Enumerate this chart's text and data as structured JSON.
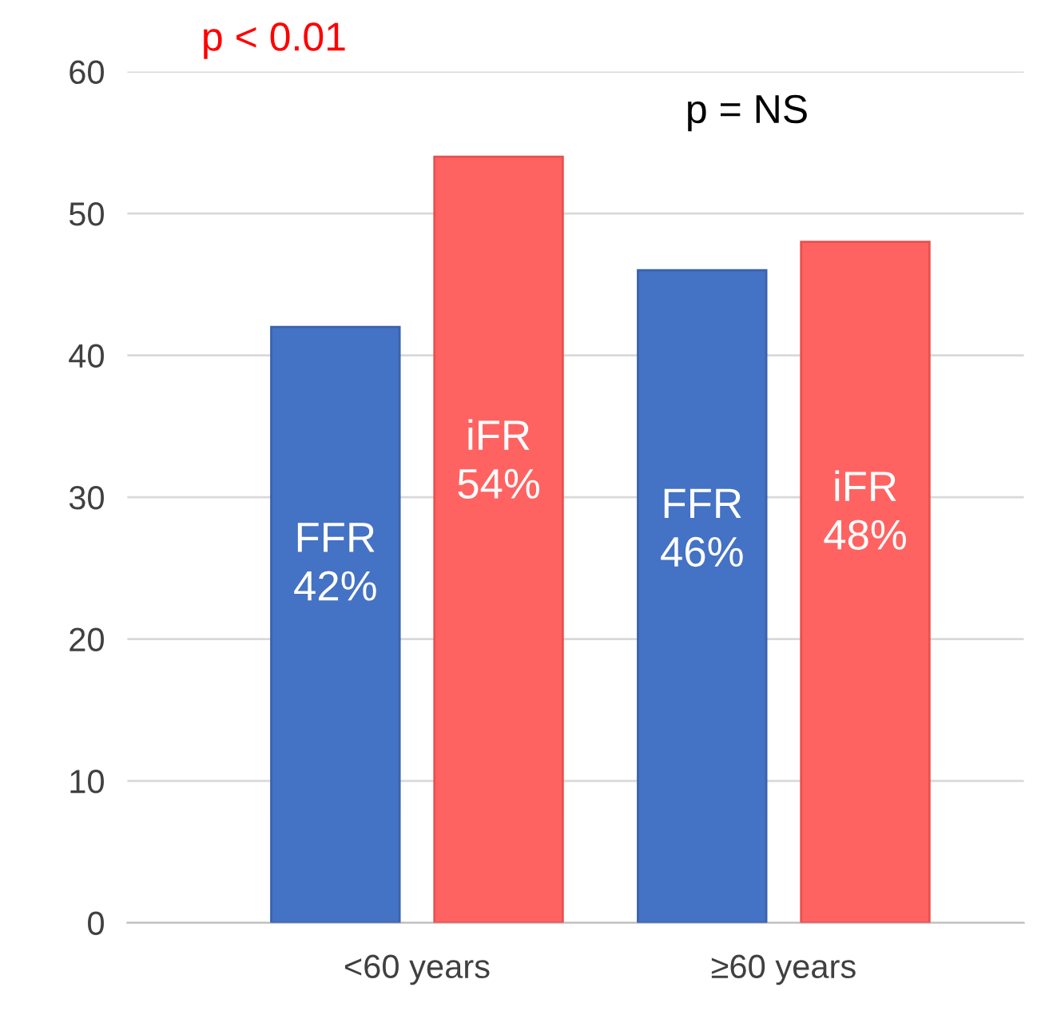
{
  "chart_data": {
    "type": "bar",
    "categories": [
      "<60 years",
      "≥60 years"
    ],
    "series": [
      {
        "name": "FFR",
        "color": "#4472c4",
        "values": [
          42,
          46
        ],
        "value_labels": [
          "42%",
          "46%"
        ]
      },
      {
        "name": "iFR",
        "color": "#ff6361",
        "values": [
          54,
          48
        ],
        "value_labels": [
          "54%",
          "48%"
        ]
      }
    ],
    "annotations": [
      "p < 0.01",
      "p = NS"
    ],
    "ylim": [
      0,
      60
    ],
    "yticks": [
      0,
      10,
      20,
      30,
      40,
      50,
      60
    ],
    "grid": "y",
    "legend": false
  }
}
